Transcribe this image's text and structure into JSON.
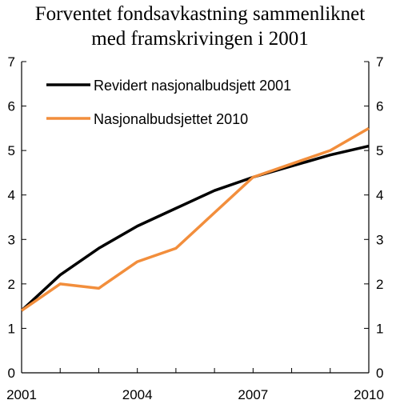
{
  "chart_data": {
    "type": "line",
    "title": [
      "Forventet fondsavkastning sammenliknet",
      "med framskrivingen i 2001"
    ],
    "xlabel": "",
    "ylabel": "",
    "x": [
      2001,
      2002,
      2003,
      2004,
      2005,
      2006,
      2007,
      2008,
      2009,
      2010
    ],
    "xticks": [
      2001,
      2004,
      2007,
      2010
    ],
    "ylim": [
      0,
      7
    ],
    "yticks": [
      0,
      1,
      2,
      3,
      4,
      5,
      6,
      7
    ],
    "xlim": [
      2001,
      2010
    ],
    "grid": false,
    "legend_position": "top-left",
    "series": [
      {
        "name": "Revidert nasjonalbudsjett 2001",
        "color": "#000000",
        "values": [
          1.4,
          2.2,
          2.8,
          3.3,
          3.7,
          4.1,
          4.4,
          4.65,
          4.9,
          5.1
        ]
      },
      {
        "name": "Nasjonalbudsjettet 2010",
        "color": "#f28e3c",
        "values": [
          1.4,
          2.0,
          1.9,
          2.5,
          2.8,
          3.6,
          4.4,
          4.7,
          5.0,
          5.5
        ]
      }
    ]
  }
}
